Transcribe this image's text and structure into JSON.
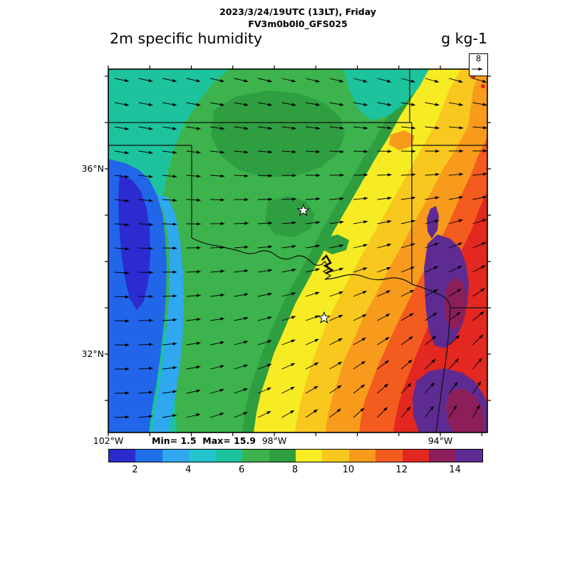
{
  "header": {
    "datetime": "2023/3/24/19UTC (13LT), Friday",
    "model": "FV3m0b0l0_GFS025"
  },
  "titles": {
    "left": "2m specific humidity",
    "right": "g kg-1"
  },
  "reference_vector": {
    "label": "8"
  },
  "stats": {
    "minmax": "Min= 1.5  Max= 15.9"
  },
  "axes": {
    "lat_labels": [
      {
        "text": "36°N",
        "lat": 36
      },
      {
        "text": "32°N",
        "lat": 32
      }
    ],
    "lon_labels": [
      {
        "text": "102°W",
        "lon": 102
      },
      {
        "text": "98°W",
        "lon": 98
      },
      {
        "text": "94°W",
        "lon": 94
      }
    ]
  },
  "colorbar": {
    "min": 1,
    "max": 15,
    "tick_values": [
      2,
      4,
      6,
      8,
      10,
      12,
      14
    ],
    "colors": [
      "#2b2bd0",
      "#1f6fe8",
      "#2fa8ef",
      "#24c4cf",
      "#1dc39d",
      "#3cb34c",
      "#2f9e41",
      "#f7ec23",
      "#f8c81e",
      "#f89b1c",
      "#f35b1f",
      "#e22820",
      "#8c1f5a",
      "#5e2b93"
    ]
  },
  "map": {
    "markers": [
      {
        "name": "star-oklahoma-city",
        "lat": 35.1,
        "lon": 97.3
      },
      {
        "name": "star-dallas",
        "lat": 32.78,
        "lon": 96.8
      }
    ]
  },
  "chart_data": {
    "type": "heatmap",
    "title": "2m specific humidity",
    "units": "g kg-1",
    "valid_time": "2023/3/24/19UTC (13LT), Friday",
    "model_run": "FV3m0b0l0_GFS025",
    "field_min": 1.5,
    "field_max": 15.9,
    "wind_reference_vector": 8,
    "colorbar_ticks": [
      2,
      4,
      6,
      8,
      10,
      12,
      14
    ],
    "colorbar_range": [
      1,
      15
    ],
    "lat_ticks_labeled": [
      "36°N",
      "32°N"
    ],
    "lon_ticks_labeled": [
      "102°W",
      "98°W",
      "94°W"
    ],
    "region": "Southern Great Plains: Kansas, Oklahoma, Texas, Arkansas, Missouri",
    "pattern": "Dry air (2-4 g/kg, blue) over the far west/Texas panhandle; 5-6 g/kg teal across Kansas; green 6-8 over central Oklahoma; yellow 8-9 band through central Texas and Oklahoma; orange 10-12 over east Oklahoma/north-central Texas; red 12-14 and purple 14+ over northeast Texas and Arkansas with the maximum toward the lower right",
    "overlays": [
      "surface wind vectors",
      "state borders",
      "Red River with Lake Texoma",
      "two star city markers"
    ]
  }
}
